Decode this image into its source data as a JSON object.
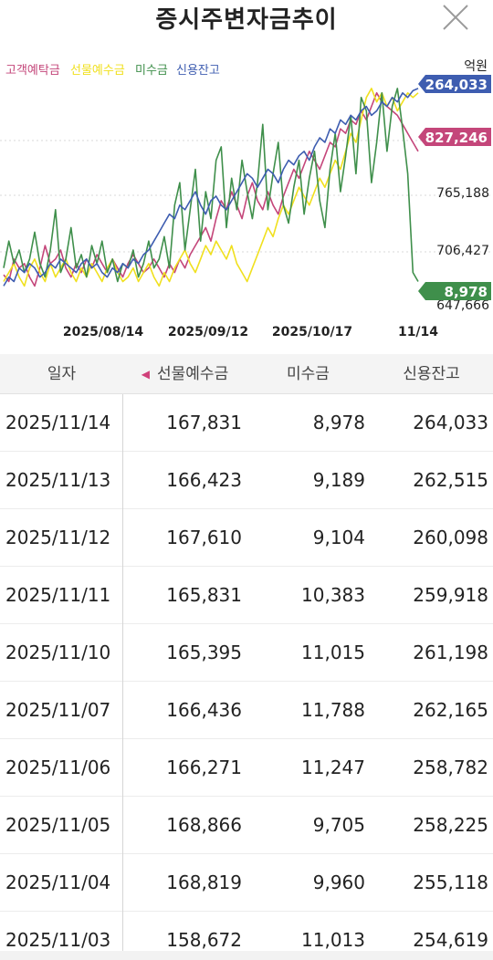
{
  "header": {
    "title": "증시주변자금추이",
    "close_icon": "close-icon"
  },
  "chart": {
    "unit_label": "억원",
    "legend": [
      {
        "label": "고객예탁금",
        "color": "#c4467a"
      },
      {
        "label": "선물예수금",
        "color": "#f0e01e"
      },
      {
        "label": "미수금",
        "color": "#3f8f4b"
      },
      {
        "label": "신용잔고",
        "color": "#3e5db0"
      }
    ],
    "y_tick_labels": [
      "765,188",
      "706,427",
      "647,666"
    ],
    "x_tick_labels": [
      "2025/08/14",
      "2025/09/12",
      "2025/10/17",
      "11/14"
    ],
    "current_badges": {
      "credit": {
        "text": "264,033",
        "color": "#3e5db0"
      },
      "deposit": {
        "text": "827,246",
        "color": "#c4467a"
      },
      "unpaid": {
        "text": "8,978",
        "color": "#3f8f4b"
      }
    }
  },
  "chart_data": {
    "type": "line",
    "x_start": "2025/07/11",
    "x_end": "2025/11/14",
    "y_axis_labels": [
      765188,
      706427,
      647666
    ],
    "series": [
      {
        "name": "고객예탁금",
        "color": "#c4467a",
        "values": [
          0.15,
          0.12,
          0.22,
          0.18,
          0.2,
          0.14,
          0.1,
          0.18,
          0.28,
          0.2,
          0.22,
          0.26,
          0.18,
          0.14,
          0.2,
          0.16,
          0.22,
          0.18,
          0.24,
          0.2,
          0.16,
          0.22,
          0.18,
          0.14,
          0.2,
          0.24,
          0.2,
          0.16,
          0.18,
          0.22,
          0.18,
          0.14,
          0.2,
          0.16,
          0.22,
          0.18,
          0.24,
          0.28,
          0.32,
          0.36,
          0.3,
          0.4,
          0.48,
          0.44,
          0.52,
          0.46,
          0.4,
          0.5,
          0.56,
          0.48,
          0.44,
          0.52,
          0.46,
          0.42,
          0.5,
          0.56,
          0.62,
          0.58,
          0.64,
          0.7,
          0.66,
          0.62,
          0.68,
          0.74,
          0.72,
          0.8,
          0.78,
          0.84,
          0.82,
          0.88,
          0.84,
          0.9,
          0.96,
          0.92,
          0.9,
          0.88,
          0.86,
          0.82,
          0.78,
          0.74,
          0.7
        ]
      },
      {
        "name": "선물예수금",
        "color": "#f0e01e",
        "values": [
          0.12,
          0.16,
          0.2,
          0.14,
          0.1,
          0.18,
          0.22,
          0.16,
          0.12,
          0.2,
          0.14,
          0.18,
          0.22,
          0.16,
          0.12,
          0.18,
          0.14,
          0.2,
          0.16,
          0.12,
          0.18,
          0.22,
          0.16,
          0.12,
          0.14,
          0.18,
          0.12,
          0.16,
          0.2,
          0.14,
          0.1,
          0.16,
          0.12,
          0.18,
          0.22,
          0.26,
          0.2,
          0.16,
          0.22,
          0.28,
          0.24,
          0.3,
          0.26,
          0.22,
          0.28,
          0.2,
          0.16,
          0.12,
          0.18,
          0.24,
          0.3,
          0.36,
          0.32,
          0.4,
          0.46,
          0.42,
          0.48,
          0.54,
          0.5,
          0.46,
          0.52,
          0.58,
          0.54,
          0.6,
          0.66,
          0.62,
          0.7,
          0.78,
          0.74,
          0.84,
          0.94,
          0.98,
          0.92,
          0.96,
          0.9,
          0.94,
          0.88,
          0.92,
          0.96,
          0.94,
          0.96
        ]
      },
      {
        "name": "미수금",
        "color": "#3f8f4b",
        "values": [
          0.18,
          0.3,
          0.2,
          0.26,
          0.16,
          0.22,
          0.34,
          0.2,
          0.14,
          0.26,
          0.44,
          0.16,
          0.22,
          0.36,
          0.18,
          0.24,
          0.14,
          0.28,
          0.2,
          0.3,
          0.16,
          0.22,
          0.12,
          0.2,
          0.18,
          0.26,
          0.14,
          0.2,
          0.3,
          0.18,
          0.22,
          0.32,
          0.18,
          0.46,
          0.56,
          0.26,
          0.44,
          0.62,
          0.3,
          0.52,
          0.4,
          0.66,
          0.72,
          0.36,
          0.58,
          0.44,
          0.66,
          0.52,
          0.4,
          0.56,
          0.82,
          0.44,
          0.6,
          0.74,
          0.46,
          0.38,
          0.54,
          0.66,
          0.42,
          0.58,
          0.7,
          0.48,
          0.36,
          0.62,
          0.78,
          0.52,
          0.68,
          0.86,
          0.6,
          0.94,
          0.88,
          0.56,
          0.74,
          0.96,
          0.7,
          0.9,
          0.98,
          0.8,
          0.6,
          0.16,
          0.12
        ]
      },
      {
        "name": "신용잔고",
        "color": "#3e5db0",
        "values": [
          0.1,
          0.14,
          0.12,
          0.18,
          0.16,
          0.2,
          0.18,
          0.14,
          0.16,
          0.2,
          0.18,
          0.22,
          0.2,
          0.18,
          0.16,
          0.2,
          0.22,
          0.18,
          0.2,
          0.16,
          0.14,
          0.18,
          0.16,
          0.2,
          0.18,
          0.22,
          0.2,
          0.24,
          0.26,
          0.3,
          0.34,
          0.38,
          0.42,
          0.4,
          0.46,
          0.44,
          0.48,
          0.52,
          0.46,
          0.42,
          0.48,
          0.5,
          0.46,
          0.44,
          0.48,
          0.52,
          0.56,
          0.6,
          0.58,
          0.54,
          0.58,
          0.62,
          0.6,
          0.56,
          0.62,
          0.66,
          0.64,
          0.68,
          0.7,
          0.66,
          0.72,
          0.76,
          0.74,
          0.8,
          0.78,
          0.84,
          0.82,
          0.86,
          0.84,
          0.88,
          0.9,
          0.86,
          0.88,
          0.92,
          0.9,
          0.94,
          0.92,
          0.96,
          0.94,
          0.97,
          0.98
        ]
      }
    ]
  },
  "table": {
    "headers": {
      "date": "일자",
      "futures": "선물예수금",
      "unpaid": "미수금",
      "credit": "신용잔고"
    },
    "sort_icon": "sort-arrow-icon",
    "rows": [
      {
        "date": "2025/11/14",
        "futures": "167,831",
        "unpaid": "8,978",
        "credit": "264,033"
      },
      {
        "date": "2025/11/13",
        "futures": "166,423",
        "unpaid": "9,189",
        "credit": "262,515"
      },
      {
        "date": "2025/11/12",
        "futures": "167,610",
        "unpaid": "9,104",
        "credit": "260,098"
      },
      {
        "date": "2025/11/11",
        "futures": "165,831",
        "unpaid": "10,383",
        "credit": "259,918"
      },
      {
        "date": "2025/11/10",
        "futures": "165,395",
        "unpaid": "11,015",
        "credit": "261,198"
      },
      {
        "date": "2025/11/07",
        "futures": "166,436",
        "unpaid": "11,788",
        "credit": "262,165"
      },
      {
        "date": "2025/11/06",
        "futures": "166,271",
        "unpaid": "11,247",
        "credit": "258,782"
      },
      {
        "date": "2025/11/05",
        "futures": "168,866",
        "unpaid": "9,705",
        "credit": "258,225"
      },
      {
        "date": "2025/11/04",
        "futures": "168,819",
        "unpaid": "9,960",
        "credit": "255,118"
      },
      {
        "date": "2025/11/03",
        "futures": "158,672",
        "unpaid": "11,013",
        "credit": "254,619"
      }
    ]
  }
}
